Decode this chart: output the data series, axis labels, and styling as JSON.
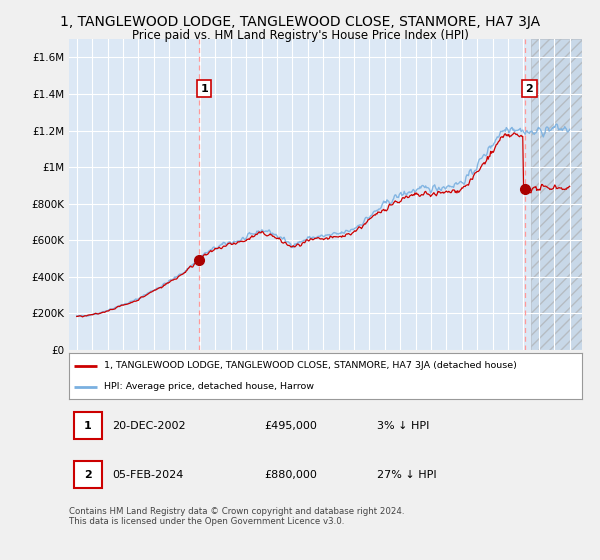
{
  "title": "1, TANGLEWOOD LODGE, TANGLEWOOD CLOSE, STANMORE, HA7 3JA",
  "subtitle": "Price paid vs. HM Land Registry's House Price Index (HPI)",
  "title_fontsize": 10,
  "subtitle_fontsize": 8.5,
  "bg_color": "#dce8f5",
  "future_bg_color": "#c8d8e8",
  "grid_color": "#ffffff",
  "ylim": [
    0,
    1700000
  ],
  "yticks": [
    0,
    200000,
    400000,
    600000,
    800000,
    1000000,
    1200000,
    1400000,
    1600000
  ],
  "ytick_labels": [
    "£0",
    "£200K",
    "£400K",
    "£600K",
    "£800K",
    "£1M",
    "£1.2M",
    "£1.4M",
    "£1.6M"
  ],
  "xstart": 1995,
  "xend": 2027,
  "hpi_color": "#7ab0e0",
  "price_color": "#cc0000",
  "marker1_year": 2002.97,
  "marker1_price": 495000,
  "marker2_year": 2024.09,
  "marker2_price": 880000,
  "legend_line1": "1, TANGLEWOOD LODGE, TANGLEWOOD CLOSE, STANMORE, HA7 3JA (detached house)",
  "legend_line2": "HPI: Average price, detached house, Harrow",
  "footer": "Contains HM Land Registry data © Crown copyright and database right 2024.\nThis data is licensed under the Open Government Licence v3.0."
}
